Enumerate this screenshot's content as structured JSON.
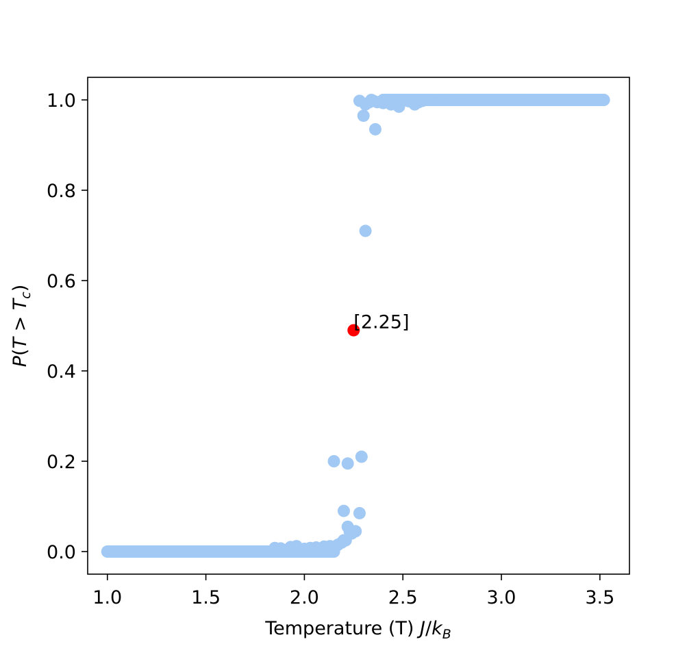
{
  "chart_data": {
    "type": "scatter",
    "title": "",
    "xlabel_parts": {
      "text": "Temperature (T) ",
      "math_j": "J",
      "math_slash": "/",
      "math_k": "k",
      "math_sub": "B"
    },
    "ylabel_parts": {
      "p": "P",
      "open": "(",
      "t1": "T",
      "gt": " > ",
      "t2": "T",
      "sub": "c",
      "close": ")"
    },
    "xlim": [
      0.9,
      3.65
    ],
    "ylim": [
      -0.05,
      1.05
    ],
    "xticks": [
      1.0,
      1.5,
      2.0,
      2.5,
      3.0,
      3.5
    ],
    "xtick_labels": [
      "1.0",
      "1.5",
      "2.0",
      "2.5",
      "3.0",
      "3.5"
    ],
    "yticks": [
      0.0,
      0.2,
      0.4,
      0.6,
      0.8,
      1.0
    ],
    "ytick_labels": [
      "0.0",
      "0.2",
      "0.4",
      "0.6",
      "0.8",
      "1.0"
    ],
    "grid": false,
    "series_color": "#a1c9f4",
    "highlight_color": "#ff0000",
    "low_range": {
      "x_start": 1.0,
      "x_end": 2.15,
      "step": 0.01,
      "y": 0.0
    },
    "high_range": {
      "x_start": 2.4,
      "x_end": 3.52,
      "step": 0.01,
      "y": 1.0
    },
    "points": [
      [
        1.85,
        0.008
      ],
      [
        1.88,
        0.007
      ],
      [
        1.93,
        0.01
      ],
      [
        1.96,
        0.012
      ],
      [
        2.0,
        0.006
      ],
      [
        2.03,
        0.008
      ],
      [
        2.06,
        0.009
      ],
      [
        2.08,
        0.007
      ],
      [
        2.1,
        0.011
      ],
      [
        2.13,
        0.012
      ],
      [
        2.14,
        0.006
      ],
      [
        2.15,
        0.005
      ],
      [
        2.15,
        0.2
      ],
      [
        2.16,
        0.012
      ],
      [
        2.17,
        0.015
      ],
      [
        2.19,
        0.02
      ],
      [
        2.2,
        0.025
      ],
      [
        2.2,
        0.09
      ],
      [
        2.21,
        0.025
      ],
      [
        2.22,
        0.195
      ],
      [
        2.22,
        0.055
      ],
      [
        2.23,
        0.045
      ],
      [
        2.24,
        0.04
      ],
      [
        2.26,
        0.045
      ],
      [
        2.28,
        0.085
      ],
      [
        2.29,
        0.21
      ],
      [
        2.28,
        0.998
      ],
      [
        2.3,
        0.965
      ],
      [
        2.31,
        0.71
      ],
      [
        2.31,
        0.99
      ],
      [
        2.33,
        0.995
      ],
      [
        2.34,
        1.0
      ],
      [
        2.35,
        0.998
      ],
      [
        2.36,
        0.935
      ],
      [
        2.37,
        0.995
      ],
      [
        2.4,
        0.993
      ],
      [
        2.42,
        0.998
      ],
      [
        2.44,
        0.99
      ],
      [
        2.45,
        0.995
      ],
      [
        2.48,
        0.985
      ],
      [
        2.5,
        0.998
      ],
      [
        2.53,
        0.997
      ],
      [
        2.56,
        0.99
      ],
      [
        2.58,
        0.995
      ],
      [
        2.6,
        0.998
      ]
    ],
    "highlight": {
      "x": 2.25,
      "y": 0.49
    },
    "annotation": "[2.25]"
  }
}
